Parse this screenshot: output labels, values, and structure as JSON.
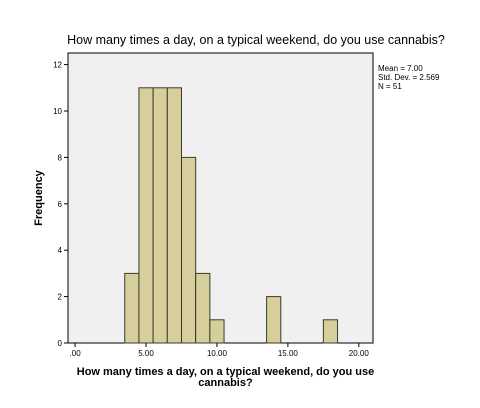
{
  "chart_data": {
    "type": "bar",
    "title": "How many times a day, on a typical weekend, do you use cannabis?",
    "xlabel_lines": [
      "How many times a day, on a typical weekend, do you use",
      "cannabis?"
    ],
    "ylabel": "Frequency",
    "x_ticks": [
      ".00",
      "5.00",
      "10.00",
      "15.00",
      "20.00"
    ],
    "y_ticks": [
      "0",
      "2",
      "4",
      "6",
      "8",
      "10",
      "12"
    ],
    "xlim": [
      -0.5,
      21
    ],
    "ylim": [
      0,
      12.5
    ],
    "bins": [
      {
        "start": 3.5,
        "end": 4.5,
        "count": 3
      },
      {
        "start": 4.5,
        "end": 5.5,
        "count": 11
      },
      {
        "start": 5.5,
        "end": 6.5,
        "count": 11
      },
      {
        "start": 6.5,
        "end": 7.5,
        "count": 11
      },
      {
        "start": 7.5,
        "end": 8.5,
        "count": 8
      },
      {
        "start": 8.5,
        "end": 9.5,
        "count": 3
      },
      {
        "start": 9.5,
        "end": 10.5,
        "count": 1
      },
      {
        "start": 13.5,
        "end": 14.5,
        "count": 2
      },
      {
        "start": 17.5,
        "end": 18.5,
        "count": 1
      }
    ],
    "stats": [
      "Mean = 7.00",
      "Std. Dev. = 2.569",
      "N = 51"
    ],
    "colors": {
      "bar_fill": "#d6cf9c",
      "bar_stroke": "#3a3a2a",
      "plot_bg": "#f0f0f0",
      "axis": "#000000"
    }
  }
}
